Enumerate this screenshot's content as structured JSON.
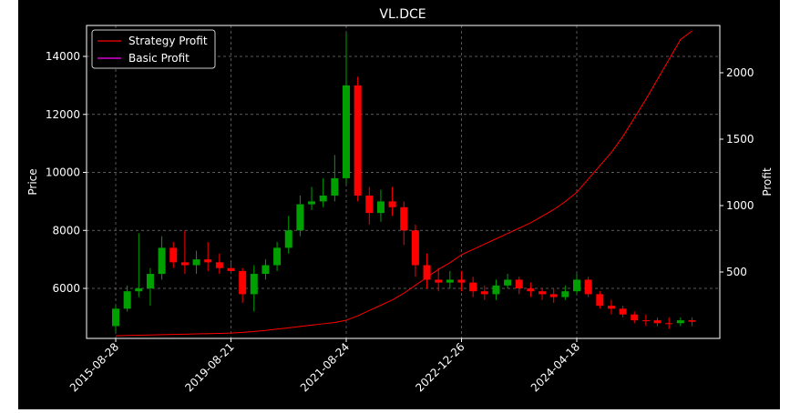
{
  "chart_data": {
    "type": "candlestick",
    "title": "VL.DCE",
    "y_label": "Price",
    "y2_label": "Profit",
    "categories": [
      "2015-08-28",
      null,
      null,
      null,
      null,
      null,
      null,
      null,
      null,
      null,
      "2019-08-21",
      null,
      null,
      null,
      null,
      null,
      null,
      null,
      null,
      null,
      "2021-08-24",
      null,
      null,
      null,
      null,
      null,
      null,
      null,
      null,
      null,
      "2022-12-26",
      null,
      null,
      null,
      null,
      null,
      null,
      null,
      null,
      null,
      "2024-04-18",
      null,
      null,
      null,
      null,
      null,
      null,
      null,
      null,
      null,
      null
    ],
    "open": [
      4700,
      5300,
      5900,
      6000,
      6500,
      7400,
      6900,
      6800,
      7000,
      6900,
      6700,
      6600,
      5800,
      6500,
      6800,
      7400,
      8000,
      8900,
      9000,
      9200,
      9800,
      13000,
      9200,
      8600,
      9000,
      8800,
      8000,
      6800,
      6300,
      6200,
      6300,
      6200,
      5900,
      5800,
      6100,
      6300,
      6000,
      5900,
      5800,
      5700,
      5900,
      6300,
      5800,
      5400,
      5300,
      5100,
      4900,
      4900,
      4800,
      4800,
      4900
    ],
    "high": [
      5400,
      6100,
      7900,
      6700,
      7800,
      7600,
      8000,
      7300,
      7600,
      7200,
      6900,
      6700,
      6800,
      7000,
      7600,
      8500,
      9200,
      9500,
      9800,
      10600,
      14800,
      13300,
      9500,
      9400,
      9500,
      9000,
      8200,
      7200,
      6700,
      6600,
      6600,
      6400,
      6100,
      6300,
      6500,
      6400,
      6200,
      6000,
      6000,
      6100,
      6500,
      6400,
      5900,
      5600,
      5400,
      5200,
      5100,
      5000,
      5000,
      5000,
      5000
    ],
    "low": [
      4500,
      5200,
      5700,
      5400,
      6300,
      6700,
      6500,
      6500,
      6600,
      6500,
      6500,
      5500,
      5200,
      6300,
      6600,
      7200,
      7800,
      8700,
      8800,
      9000,
      9600,
      9000,
      8200,
      8300,
      8500,
      7500,
      6400,
      6000,
      5900,
      6000,
      5900,
      5700,
      5600,
      5600,
      6000,
      5800,
      5700,
      5600,
      5500,
      5600,
      5800,
      5700,
      5300,
      5100,
      5000,
      4800,
      4700,
      4700,
      4600,
      4700,
      4700
    ],
    "close": [
      5300,
      5900,
      6000,
      6500,
      7400,
      6900,
      6800,
      7000,
      6900,
      6700,
      6600,
      5800,
      6500,
      6800,
      7400,
      8000,
      8900,
      9000,
      9200,
      9800,
      13000,
      9200,
      8600,
      9000,
      8800,
      8000,
      6800,
      6300,
      6200,
      6300,
      6200,
      5900,
      5800,
      6100,
      6300,
      6000,
      5900,
      5800,
      5700,
      5900,
      6300,
      5800,
      5400,
      5300,
      5100,
      4900,
      4900,
      4800,
      4800,
      4900,
      4850
    ],
    "up_color": "#00a000",
    "down_color": "#ff0000",
    "series": [
      {
        "name": "Strategy Profit",
        "color": "#ff0000",
        "axis": "y2",
        "values": [
          20,
          22,
          24,
          26,
          28,
          30,
          32,
          34,
          36,
          38,
          40,
          45,
          52,
          60,
          70,
          80,
          90,
          100,
          110,
          120,
          137,
          170,
          210,
          250,
          290,
          340,
          400,
          460,
          520,
          570,
          630,
          670,
          710,
          750,
          790,
          830,
          870,
          920,
          970,
          1030,
          1100,
          1200,
          1300,
          1400,
          1520,
          1660,
          1800,
          1950,
          2100,
          2250,
          2315
        ]
      },
      {
        "name": "Basic Profit",
        "color": "#ff00ff",
        "axis": "y2",
        "values": [
          null,
          null,
          null,
          null,
          null,
          null,
          null,
          null,
          null,
          null,
          null,
          null,
          null,
          null,
          null,
          null,
          null,
          null,
          null,
          null,
          null,
          null,
          null,
          null,
          null,
          null,
          null,
          null,
          null,
          null,
          null,
          null,
          null,
          null,
          null,
          null,
          null,
          null,
          null,
          null,
          null,
          null,
          null,
          null,
          null,
          null,
          null,
          null,
          null,
          null,
          null
        ]
      }
    ],
    "ylim": [
      4275,
      15067
    ],
    "yticks": [
      6000,
      8000,
      10000,
      12000,
      14000
    ],
    "y2lim": [
      0,
      2356
    ],
    "y2ticks": [
      500,
      1000,
      1500,
      2000
    ],
    "grid": true,
    "legend": "upper left"
  }
}
